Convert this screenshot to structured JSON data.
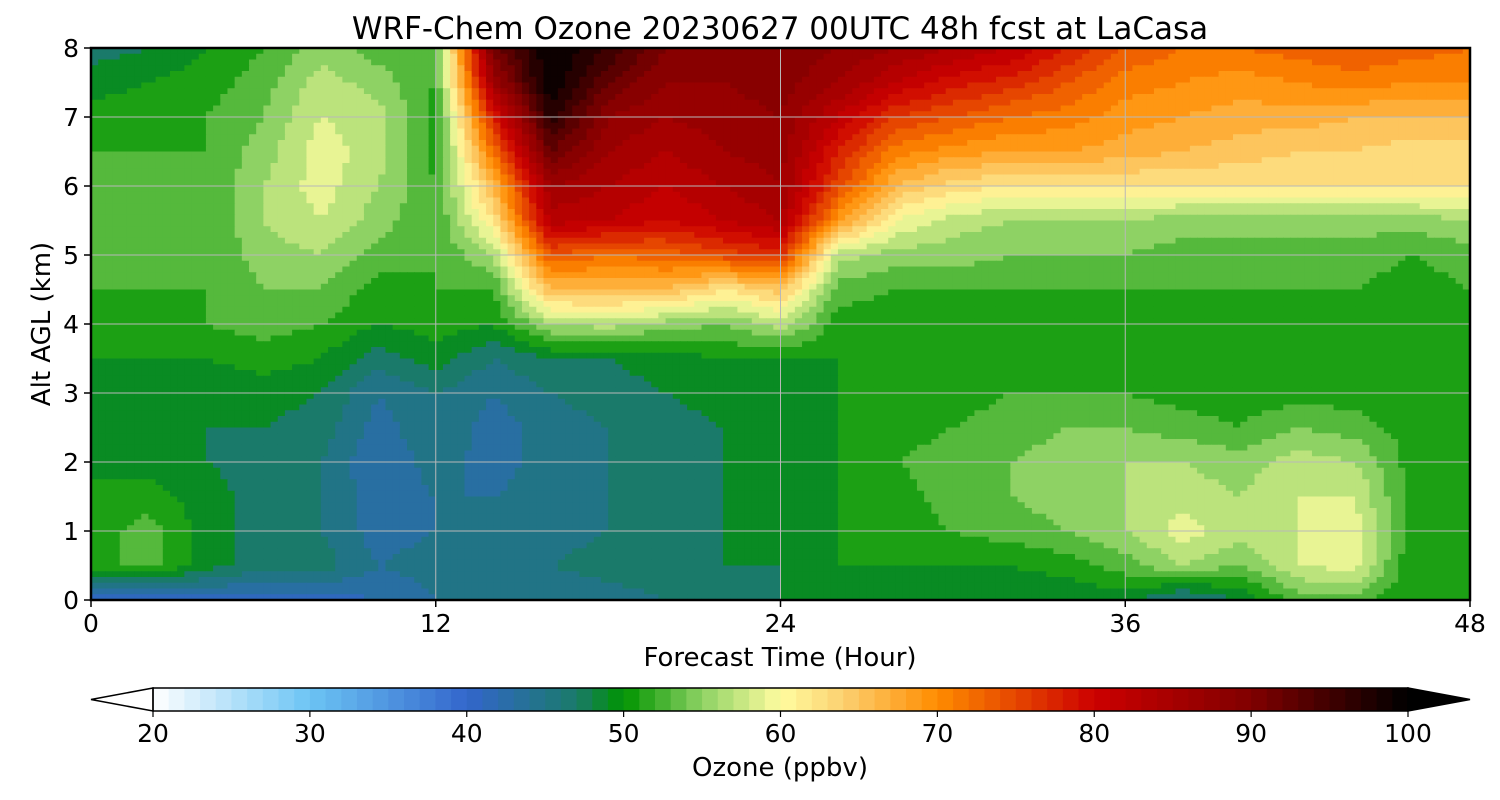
{
  "chart_data": {
    "type": "heatmap",
    "title": "WRF-Chem Ozone  20230627 00UTC 48h fcst at LaCasa",
    "xlabel": "Forecast Time (Hour)",
    "ylabel": "Alt AGL (km)",
    "xlim": [
      0,
      48
    ],
    "ylim": [
      0,
      8
    ],
    "xticks": [
      "0",
      "12",
      "24",
      "36",
      "48"
    ],
    "yticks": [
      "0",
      "1",
      "2",
      "3",
      "4",
      "5",
      "6",
      "7",
      "8"
    ],
    "grid": true,
    "colorbar": {
      "label": "Ozone  (ppbv)",
      "range": [
        20,
        100
      ],
      "ticks": [
        "20",
        "30",
        "40",
        "50",
        "60",
        "70",
        "80",
        "90",
        "100"
      ],
      "extend": "both",
      "stops": [
        {
          "v": 20,
          "c": "#ffffff"
        },
        {
          "v": 30,
          "c": "#6cc4f4"
        },
        {
          "v": 40,
          "c": "#3366cc"
        },
        {
          "v": 47,
          "c": "#1a7a6a"
        },
        {
          "v": 50,
          "c": "#009400"
        },
        {
          "v": 55,
          "c": "#8ed264"
        },
        {
          "v": 60,
          "c": "#fffca0"
        },
        {
          "v": 64,
          "c": "#fcd070"
        },
        {
          "v": 70,
          "c": "#ff8c00"
        },
        {
          "v": 80,
          "c": "#cc0000"
        },
        {
          "v": 90,
          "c": "#800000"
        },
        {
          "v": 100,
          "c": "#000000"
        }
      ]
    },
    "x": [
      0,
      2,
      4,
      6,
      8,
      10,
      12,
      14,
      16,
      18,
      20,
      22,
      24,
      26,
      28,
      30,
      32,
      34,
      36,
      38,
      40,
      42,
      44,
      46,
      48
    ],
    "y": [
      0,
      0.5,
      1,
      1.5,
      2,
      2.5,
      3,
      3.5,
      4,
      4.5,
      5,
      5.5,
      6,
      6.5,
      7,
      7.5,
      8
    ],
    "z": [
      [
        41,
        41,
        41,
        41,
        41,
        42,
        44,
        44,
        44,
        45,
        46,
        47,
        48,
        49,
        48,
        48,
        48,
        48,
        49,
        45,
        48,
        53,
        53,
        50,
        50
      ],
      [
        51,
        53,
        49,
        47,
        47,
        44,
        45,
        46,
        46,
        47,
        47,
        48,
        48,
        50,
        50,
        50,
        50,
        51,
        53,
        56,
        54,
        58,
        59,
        50,
        50
      ],
      [
        51,
        53,
        49,
        47,
        46,
        43,
        44,
        44,
        45,
        46,
        47,
        48,
        48,
        50,
        51,
        52,
        53,
        54,
        56,
        59,
        57,
        58,
        59,
        51,
        50
      ],
      [
        50,
        51,
        49,
        47,
        46,
        43,
        44,
        44,
        45,
        46,
        47,
        48,
        48,
        50,
        51,
        53,
        54,
        55,
        56,
        57,
        56,
        58,
        58,
        51,
        50
      ],
      [
        50,
        49,
        48,
        47,
        46,
        42,
        45,
        43,
        45,
        46,
        47,
        48,
        48,
        50,
        52,
        53,
        54,
        55,
        56,
        56,
        55,
        57,
        56,
        51,
        50
      ],
      [
        49,
        48,
        48,
        48,
        47,
        43,
        46,
        43,
        45,
        46,
        47,
        48,
        49,
        50,
        51,
        52,
        53,
        54,
        54,
        53,
        52,
        54,
        53,
        51,
        50
      ],
      [
        49,
        48,
        48,
        49,
        48,
        44,
        46,
        44,
        46,
        47,
        48,
        49,
        49,
        50,
        50,
        51,
        52,
        52,
        52,
        51,
        51,
        51,
        51,
        50,
        50
      ],
      [
        50,
        50,
        50,
        51,
        50,
        47,
        49,
        46,
        48,
        48,
        49,
        50,
        50,
        50,
        50,
        50,
        51,
        51,
        51,
        50,
        50,
        50,
        50,
        50,
        50
      ],
      [
        51,
        51,
        52,
        53,
        52,
        50,
        51,
        50,
        56,
        57,
        55,
        54,
        57,
        51,
        51,
        51,
        51,
        51,
        51,
        51,
        51,
        51,
        51,
        50,
        51
      ],
      [
        52,
        52,
        52,
        54,
        54,
        51,
        52,
        52,
        66,
        66,
        66,
        62,
        65,
        53,
        52,
        52,
        52,
        52,
        52,
        52,
        52,
        52,
        52,
        51,
        52
      ],
      [
        52,
        52,
        52,
        55,
        56,
        53,
        52,
        56,
        74,
        72,
        73,
        75,
        77,
        57,
        55,
        55,
        54,
        54,
        54,
        53,
        53,
        53,
        53,
        52,
        53
      ],
      [
        53,
        53,
        52,
        56,
        58,
        55,
        52,
        62,
        83,
        82,
        80,
        82,
        84,
        69,
        60,
        57,
        56,
        56,
        56,
        55,
        55,
        55,
        55,
        55,
        56
      ],
      [
        53,
        53,
        52,
        56,
        59,
        56,
        52,
        66,
        86,
        84,
        82,
        84,
        86,
        75,
        66,
        63,
        62,
        62,
        62,
        62,
        62,
        62,
        62,
        62,
        62
      ],
      [
        52,
        52,
        52,
        55,
        59,
        57,
        51,
        72,
        92,
        86,
        84,
        86,
        87,
        78,
        71,
        69,
        68,
        68,
        67,
        66,
        65,
        64,
        64,
        63,
        63
      ],
      [
        51,
        51,
        52,
        54,
        58,
        57,
        51,
        78,
        97,
        88,
        86,
        87,
        88,
        82,
        76,
        74,
        72,
        71,
        69,
        68,
        67,
        67,
        66,
        66,
        66
      ],
      [
        49,
        50,
        51,
        53,
        57,
        55,
        52,
        86,
        100,
        92,
        88,
        88,
        89,
        86,
        82,
        79,
        77,
        74,
        71,
        70,
        69,
        70,
        71,
        70,
        70
      ],
      [
        47,
        48,
        50,
        52,
        55,
        53,
        52,
        91,
        100,
        96,
        90,
        89,
        90,
        88,
        86,
        84,
        82,
        78,
        74,
        72,
        72,
        73,
        74,
        73,
        72
      ]
    ]
  }
}
